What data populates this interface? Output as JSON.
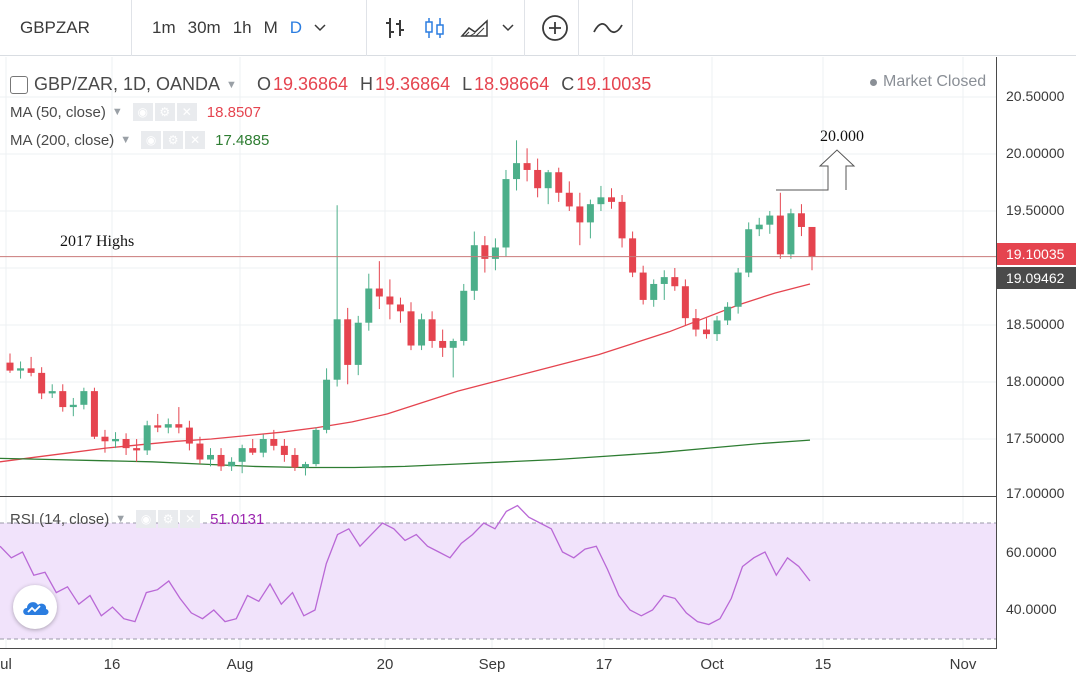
{
  "toolbar": {
    "symbol": "GBPZAR",
    "intervals": [
      "1m",
      "30m",
      "1h",
      "M",
      "D"
    ],
    "active_interval": "D",
    "icons": [
      "bar-chart-icon",
      "candlestick-icon",
      "area-chart-icon",
      "add-indicator-icon",
      "compare-line-icon"
    ]
  },
  "legend": {
    "title": "GBP/ZAR, 1D, OANDA",
    "open_label": "O",
    "open": "19.36864",
    "high_label": "H",
    "high": "19.36864",
    "low_label": "L",
    "low": "18.98664",
    "close_label": "C",
    "close": "19.10035",
    "ma50_label": "MA (50, close)",
    "ma50_value": "18.8507",
    "ma50_color": "#e5444f",
    "ma200_label": "MA (200, close)",
    "ma200_value": "17.4885",
    "ma200_color": "#2e7d32",
    "rsi_label": "RSI (14, close)",
    "rsi_value": "51.0131",
    "rsi_color": "#9c27b0",
    "market_status": "Market Closed"
  },
  "price_axis": [
    "20.50000",
    "20.00000",
    "19.50000",
    "19.00000",
    "18.50000",
    "18.00000",
    "17.50000",
    "17.00000"
  ],
  "rsi_axis": [
    "60.0000",
    "40.0000"
  ],
  "last_price": "19.10035",
  "secondary_price": "19.09462",
  "time_axis": [
    "ul",
    "16",
    "Aug",
    "20",
    "Sep",
    "17",
    "Oct",
    "15",
    "Nov"
  ],
  "annotations": {
    "highs_label": "2017 Highs",
    "target_label": "20.000"
  },
  "colors": {
    "up": "#4caf8a",
    "down": "#e5444f",
    "rsi_band": "#f1e3fb",
    "rsi_line": "#b968d6"
  },
  "chart_data": {
    "type": "candlestick",
    "price_ylim": [
      17.0,
      20.7
    ],
    "rsi_ylim": [
      20,
      80
    ],
    "candles": [
      {
        "o": 18.17,
        "h": 18.25,
        "l": 18.08,
        "c": 18.1
      },
      {
        "o": 18.1,
        "h": 18.18,
        "l": 18.03,
        "c": 18.12
      },
      {
        "o": 18.12,
        "h": 18.22,
        "l": 18.05,
        "c": 18.08
      },
      {
        "o": 18.08,
        "h": 18.13,
        "l": 17.85,
        "c": 17.9
      },
      {
        "o": 17.9,
        "h": 17.98,
        "l": 17.86,
        "c": 17.92
      },
      {
        "o": 17.92,
        "h": 17.98,
        "l": 17.74,
        "c": 17.78
      },
      {
        "o": 17.78,
        "h": 17.86,
        "l": 17.7,
        "c": 17.8
      },
      {
        "o": 17.8,
        "h": 17.95,
        "l": 17.76,
        "c": 17.92
      },
      {
        "o": 17.92,
        "h": 17.95,
        "l": 17.5,
        "c": 17.52
      },
      {
        "o": 17.52,
        "h": 17.58,
        "l": 17.38,
        "c": 17.48
      },
      {
        "o": 17.48,
        "h": 17.56,
        "l": 17.42,
        "c": 17.5
      },
      {
        "o": 17.5,
        "h": 17.55,
        "l": 17.36,
        "c": 17.42
      },
      {
        "o": 17.42,
        "h": 17.5,
        "l": 17.3,
        "c": 17.4
      },
      {
        "o": 17.4,
        "h": 17.66,
        "l": 17.36,
        "c": 17.62
      },
      {
        "o": 17.62,
        "h": 17.72,
        "l": 17.56,
        "c": 17.6
      },
      {
        "o": 17.6,
        "h": 17.68,
        "l": 17.55,
        "c": 17.63
      },
      {
        "o": 17.63,
        "h": 17.78,
        "l": 17.55,
        "c": 17.6
      },
      {
        "o": 17.6,
        "h": 17.66,
        "l": 17.4,
        "c": 17.46
      },
      {
        "o": 17.46,
        "h": 17.52,
        "l": 17.28,
        "c": 17.32
      },
      {
        "o": 17.32,
        "h": 17.42,
        "l": 17.26,
        "c": 17.36
      },
      {
        "o": 17.36,
        "h": 17.42,
        "l": 17.22,
        "c": 17.26
      },
      {
        "o": 17.26,
        "h": 17.34,
        "l": 17.22,
        "c": 17.3
      },
      {
        "o": 17.3,
        "h": 17.45,
        "l": 17.2,
        "c": 17.42
      },
      {
        "o": 17.42,
        "h": 17.5,
        "l": 17.36,
        "c": 17.38
      },
      {
        "o": 17.38,
        "h": 17.54,
        "l": 17.34,
        "c": 17.5
      },
      {
        "o": 17.5,
        "h": 17.58,
        "l": 17.4,
        "c": 17.44
      },
      {
        "o": 17.44,
        "h": 17.5,
        "l": 17.3,
        "c": 17.36
      },
      {
        "o": 17.36,
        "h": 17.42,
        "l": 17.22,
        "c": 17.25
      },
      {
        "o": 17.25,
        "h": 17.3,
        "l": 17.18,
        "c": 17.28
      },
      {
        "o": 17.28,
        "h": 17.6,
        "l": 17.26,
        "c": 17.58
      },
      {
        "o": 17.58,
        "h": 18.12,
        "l": 17.55,
        "c": 18.02
      },
      {
        "o": 18.02,
        "h": 19.55,
        "l": 17.96,
        "c": 18.55
      },
      {
        "o": 18.55,
        "h": 18.65,
        "l": 17.98,
        "c": 18.15
      },
      {
        "o": 18.15,
        "h": 18.58,
        "l": 18.06,
        "c": 18.52
      },
      {
        "o": 18.52,
        "h": 18.95,
        "l": 18.45,
        "c": 18.82
      },
      {
        "o": 18.82,
        "h": 19.06,
        "l": 18.64,
        "c": 18.75
      },
      {
        "o": 18.75,
        "h": 18.9,
        "l": 18.55,
        "c": 18.68
      },
      {
        "o": 18.68,
        "h": 18.74,
        "l": 18.52,
        "c": 18.62
      },
      {
        "o": 18.62,
        "h": 18.7,
        "l": 18.28,
        "c": 18.32
      },
      {
        "o": 18.32,
        "h": 18.6,
        "l": 18.28,
        "c": 18.55
      },
      {
        "o": 18.55,
        "h": 18.62,
        "l": 18.3,
        "c": 18.36
      },
      {
        "o": 18.36,
        "h": 18.46,
        "l": 18.22,
        "c": 18.3
      },
      {
        "o": 18.3,
        "h": 18.38,
        "l": 18.04,
        "c": 18.36
      },
      {
        "o": 18.36,
        "h": 18.86,
        "l": 18.32,
        "c": 18.8
      },
      {
        "o": 18.8,
        "h": 19.32,
        "l": 18.72,
        "c": 19.2
      },
      {
        "o": 19.2,
        "h": 19.28,
        "l": 18.96,
        "c": 19.08
      },
      {
        "o": 19.08,
        "h": 19.26,
        "l": 18.98,
        "c": 19.18
      },
      {
        "o": 19.18,
        "h": 19.86,
        "l": 19.1,
        "c": 19.78
      },
      {
        "o": 19.78,
        "h": 20.12,
        "l": 19.68,
        "c": 19.92
      },
      {
        "o": 19.92,
        "h": 20.05,
        "l": 19.76,
        "c": 19.86
      },
      {
        "o": 19.86,
        "h": 19.96,
        "l": 19.62,
        "c": 19.7
      },
      {
        "o": 19.7,
        "h": 19.86,
        "l": 19.56,
        "c": 19.84
      },
      {
        "o": 19.84,
        "h": 19.88,
        "l": 19.58,
        "c": 19.66
      },
      {
        "o": 19.66,
        "h": 19.76,
        "l": 19.5,
        "c": 19.54
      },
      {
        "o": 19.54,
        "h": 19.66,
        "l": 19.2,
        "c": 19.4
      },
      {
        "o": 19.4,
        "h": 19.6,
        "l": 19.26,
        "c": 19.56
      },
      {
        "o": 19.56,
        "h": 19.72,
        "l": 19.5,
        "c": 19.62
      },
      {
        "o": 19.62,
        "h": 19.7,
        "l": 19.52,
        "c": 19.58
      },
      {
        "o": 19.58,
        "h": 19.64,
        "l": 19.18,
        "c": 19.26
      },
      {
        "o": 19.26,
        "h": 19.32,
        "l": 18.92,
        "c": 18.96
      },
      {
        "o": 18.96,
        "h": 19.02,
        "l": 18.68,
        "c": 18.72
      },
      {
        "o": 18.72,
        "h": 18.9,
        "l": 18.66,
        "c": 18.86
      },
      {
        "o": 18.86,
        "h": 18.98,
        "l": 18.72,
        "c": 18.92
      },
      {
        "o": 18.92,
        "h": 19.0,
        "l": 18.8,
        "c": 18.84
      },
      {
        "o": 18.84,
        "h": 18.9,
        "l": 18.5,
        "c": 18.56
      },
      {
        "o": 18.56,
        "h": 18.64,
        "l": 18.4,
        "c": 18.46
      },
      {
        "o": 18.46,
        "h": 18.56,
        "l": 18.38,
        "c": 18.42
      },
      {
        "o": 18.42,
        "h": 18.58,
        "l": 18.36,
        "c": 18.54
      },
      {
        "o": 18.54,
        "h": 18.7,
        "l": 18.5,
        "c": 18.66
      },
      {
        "o": 18.66,
        "h": 19.0,
        "l": 18.6,
        "c": 18.96
      },
      {
        "o": 18.96,
        "h": 19.4,
        "l": 18.92,
        "c": 19.34
      },
      {
        "o": 19.34,
        "h": 19.44,
        "l": 19.28,
        "c": 19.38
      },
      {
        "o": 19.38,
        "h": 19.5,
        "l": 19.3,
        "c": 19.46
      },
      {
        "o": 19.46,
        "h": 19.66,
        "l": 19.08,
        "c": 19.12
      },
      {
        "o": 19.12,
        "h": 19.52,
        "l": 19.08,
        "c": 19.48
      },
      {
        "o": 19.48,
        "h": 19.56,
        "l": 19.28,
        "c": 19.36
      },
      {
        "o": 19.36,
        "h": 19.36,
        "l": 18.98,
        "c": 19.1
      }
    ],
    "ma50": [
      17.3,
      17.34,
      17.38,
      17.42,
      17.45,
      17.48,
      17.5,
      17.53,
      17.56,
      17.6,
      17.65,
      17.72,
      17.82,
      17.92,
      18.0,
      18.08,
      18.16,
      18.24,
      18.34,
      18.44,
      18.56,
      18.68,
      18.78,
      18.86
    ],
    "ma200": [
      17.33,
      17.32,
      17.31,
      17.3,
      17.28,
      17.26,
      17.25,
      17.25,
      17.26,
      17.28,
      17.3,
      17.32,
      17.35,
      17.38,
      17.42,
      17.46,
      17.49
    ],
    "rsi": [
      62,
      58,
      60,
      52,
      53,
      46,
      48,
      42,
      45,
      38,
      41,
      37,
      36,
      46,
      47,
      50,
      44,
      39,
      37,
      40,
      36,
      37,
      45,
      43,
      49,
      42,
      46,
      38,
      40,
      56,
      66,
      68,
      62,
      66,
      70,
      68,
      64,
      66,
      62,
      60,
      58,
      63,
      66,
      70,
      68,
      74,
      76,
      72,
      70,
      68,
      60,
      58,
      61,
      62,
      54,
      45,
      40,
      38,
      40,
      45,
      44,
      39,
      36,
      35,
      37,
      44,
      55,
      58,
      60,
      52,
      58,
      55,
      50
    ]
  }
}
